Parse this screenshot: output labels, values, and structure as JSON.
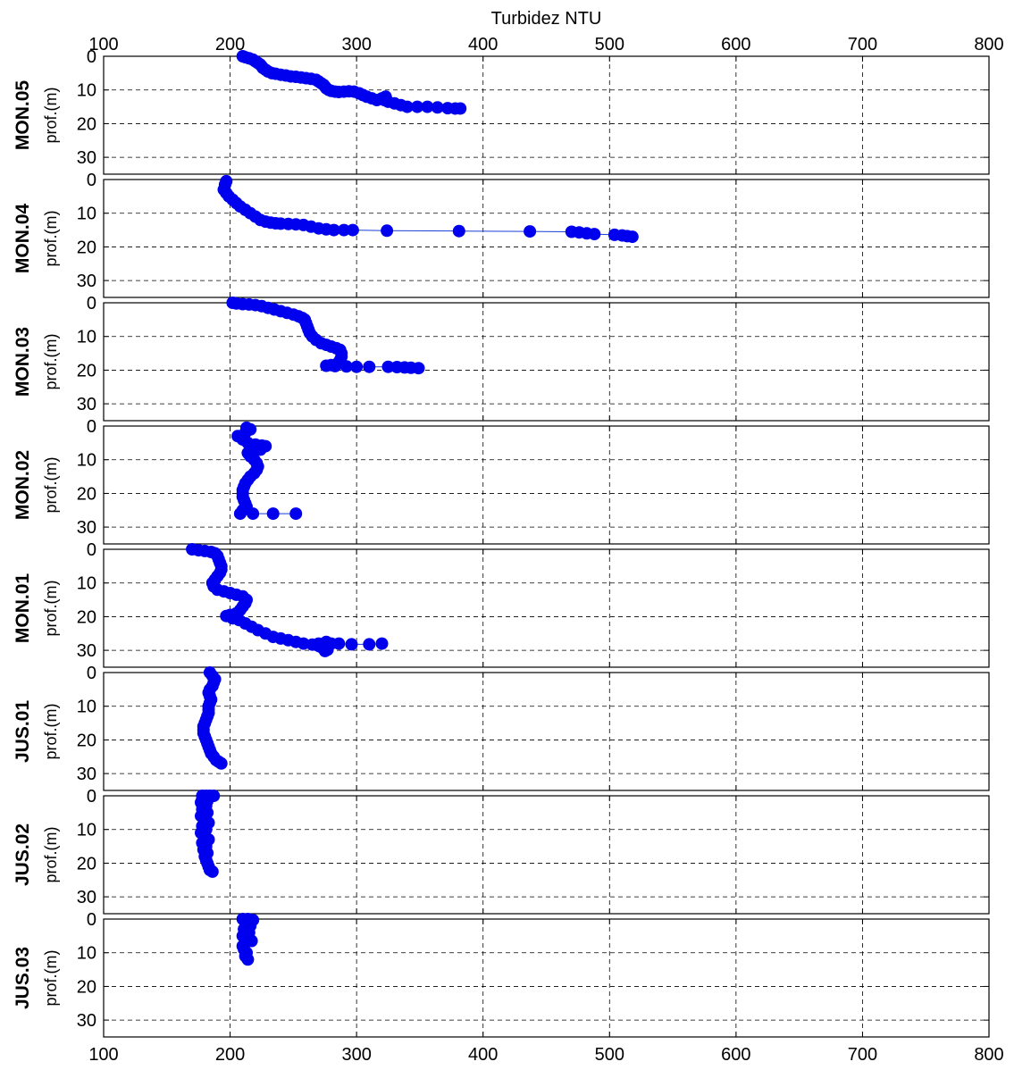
{
  "chart_data": {
    "type": "scatter",
    "xlabel": "Turbidez NTU",
    "xlim": [
      100,
      800
    ],
    "x_ticks": [
      100,
      200,
      300,
      400,
      500,
      600,
      700,
      800
    ],
    "ylim": [
      0,
      35
    ],
    "y_ticks": [
      0,
      10,
      20,
      30
    ],
    "y_inverted": true,
    "ylabel": "prof.(m)",
    "grid": true,
    "marker_color": "#0000ee",
    "line_color": "#1a3fd6",
    "panels": [
      {
        "name": "MON.05",
        "points": [
          [
            210,
            0
          ],
          [
            212,
            0.3
          ],
          [
            215,
            0.6
          ],
          [
            218,
            1
          ],
          [
            220,
            1.5
          ],
          [
            222,
            2
          ],
          [
            224,
            2.5
          ],
          [
            225,
            3
          ],
          [
            226,
            3.5
          ],
          [
            228,
            4
          ],
          [
            230,
            4.5
          ],
          [
            233,
            5
          ],
          [
            236,
            5.2
          ],
          [
            240,
            5.5
          ],
          [
            244,
            5.7
          ],
          [
            248,
            6
          ],
          [
            252,
            6.1
          ],
          [
            256,
            6.3
          ],
          [
            260,
            6.5
          ],
          [
            264,
            6.7
          ],
          [
            268,
            7
          ],
          [
            270,
            7.5
          ],
          [
            272,
            8
          ],
          [
            274,
            8.5
          ],
          [
            275,
            9
          ],
          [
            276,
            9.5
          ],
          [
            278,
            10
          ],
          [
            280,
            10.3
          ],
          [
            283,
            10.5
          ],
          [
            286,
            10.6
          ],
          [
            290,
            10.5
          ],
          [
            294,
            10.4
          ],
          [
            298,
            10.5
          ],
          [
            302,
            11
          ],
          [
            305,
            11.5
          ],
          [
            308,
            12
          ],
          [
            312,
            12.5
          ],
          [
            316,
            13
          ],
          [
            320,
            12.5
          ],
          [
            323,
            12
          ],
          [
            322,
            13
          ],
          [
            325,
            13.5
          ],
          [
            330,
            14
          ],
          [
            335,
            14.5
          ],
          [
            340,
            15
          ],
          [
            348,
            15
          ],
          [
            356,
            15
          ],
          [
            364,
            15.2
          ],
          [
            372,
            15.4
          ],
          [
            378,
            15.5
          ],
          [
            382,
            15.5
          ]
        ]
      },
      {
        "name": "MON.04",
        "points": [
          [
            197,
            0.5
          ],
          [
            196,
            1.5
          ],
          [
            195,
            3
          ],
          [
            197,
            4
          ],
          [
            199,
            5
          ],
          [
            202,
            6
          ],
          [
            205,
            7
          ],
          [
            208,
            8
          ],
          [
            212,
            9
          ],
          [
            216,
            10
          ],
          [
            220,
            11
          ],
          [
            224,
            12
          ],
          [
            228,
            12.5
          ],
          [
            232,
            12.8
          ],
          [
            236,
            13
          ],
          [
            240,
            13.1
          ],
          [
            246,
            13.2
          ],
          [
            252,
            13.3
          ],
          [
            258,
            13.5
          ],
          [
            264,
            14
          ],
          [
            270,
            14.5
          ],
          [
            276,
            14.8
          ],
          [
            282,
            15
          ],
          [
            290,
            15
          ],
          [
            297,
            15
          ],
          [
            324,
            15.2
          ],
          [
            381,
            15.3
          ],
          [
            437,
            15.4
          ],
          [
            470,
            15.5
          ],
          [
            476,
            15.7
          ],
          [
            482,
            16
          ],
          [
            488,
            16.2
          ],
          [
            504,
            16.4
          ],
          [
            510,
            16.6
          ],
          [
            514,
            16.8
          ],
          [
            518,
            17
          ]
        ]
      },
      {
        "name": "MON.03",
        "points": [
          [
            202,
            0
          ],
          [
            205,
            0.2
          ],
          [
            210,
            0.4
          ],
          [
            215,
            0.5
          ],
          [
            220,
            0.7
          ],
          [
            225,
            1
          ],
          [
            230,
            1.5
          ],
          [
            235,
            2
          ],
          [
            240,
            2.5
          ],
          [
            245,
            3
          ],
          [
            250,
            3.5
          ],
          [
            254,
            4
          ],
          [
            257,
            4.5
          ],
          [
            259,
            5
          ],
          [
            260,
            6
          ],
          [
            261,
            7
          ],
          [
            262,
            8
          ],
          [
            263,
            9
          ],
          [
            265,
            10
          ],
          [
            268,
            11
          ],
          [
            272,
            12
          ],
          [
            276,
            12.5
          ],
          [
            280,
            13
          ],
          [
            284,
            13.5
          ],
          [
            287,
            14
          ],
          [
            288,
            15
          ],
          [
            288,
            16
          ],
          [
            287,
            17
          ],
          [
            285,
            18
          ],
          [
            280,
            18.5
          ],
          [
            276,
            18.7
          ],
          [
            283,
            18.8
          ],
          [
            292,
            18.9
          ],
          [
            300,
            19
          ],
          [
            310,
            19
          ],
          [
            325,
            19
          ],
          [
            332,
            19.1
          ],
          [
            338,
            19.2
          ],
          [
            343,
            19.3
          ],
          [
            349,
            19.4
          ]
        ]
      },
      {
        "name": "MON.02",
        "points": [
          [
            213,
            0.5
          ],
          [
            216,
            1
          ],
          [
            212,
            2
          ],
          [
            206,
            3
          ],
          [
            210,
            4
          ],
          [
            214,
            5
          ],
          [
            220,
            5.5
          ],
          [
            225,
            5.8
          ],
          [
            228,
            6
          ],
          [
            224,
            7
          ],
          [
            218,
            7.5
          ],
          [
            214,
            8
          ],
          [
            216,
            9
          ],
          [
            219,
            10
          ],
          [
            221,
            11
          ],
          [
            222,
            12
          ],
          [
            221,
            13
          ],
          [
            219,
            14
          ],
          [
            216,
            15
          ],
          [
            214,
            16
          ],
          [
            212,
            17
          ],
          [
            211,
            18
          ],
          [
            210,
            19
          ],
          [
            210,
            20
          ],
          [
            210,
            21
          ],
          [
            211,
            22
          ],
          [
            212,
            23
          ],
          [
            213,
            24
          ],
          [
            210,
            25
          ],
          [
            208,
            26
          ],
          [
            218,
            26
          ],
          [
            234,
            26
          ],
          [
            252,
            26
          ]
        ]
      },
      {
        "name": "MON.01",
        "points": [
          [
            170,
            0
          ],
          [
            175,
            0.3
          ],
          [
            180,
            0.5
          ],
          [
            185,
            0.8
          ],
          [
            188,
            1.2
          ],
          [
            190,
            2
          ],
          [
            191,
            3
          ],
          [
            192,
            4
          ],
          [
            193,
            5
          ],
          [
            193,
            6
          ],
          [
            192,
            7
          ],
          [
            190,
            8
          ],
          [
            188,
            9
          ],
          [
            186,
            10
          ],
          [
            187,
            11
          ],
          [
            190,
            12
          ],
          [
            195,
            12.5
          ],
          [
            200,
            13
          ],
          [
            205,
            13.5
          ],
          [
            210,
            14
          ],
          [
            213,
            15
          ],
          [
            212,
            16
          ],
          [
            210,
            17
          ],
          [
            208,
            18
          ],
          [
            205,
            19
          ],
          [
            200,
            19.5
          ],
          [
            197,
            19.8
          ],
          [
            202,
            20.5
          ],
          [
            207,
            21
          ],
          [
            212,
            22
          ],
          [
            217,
            23
          ],
          [
            222,
            24
          ],
          [
            228,
            25
          ],
          [
            234,
            26
          ],
          [
            240,
            26.5
          ],
          [
            246,
            27
          ],
          [
            252,
            27.5
          ],
          [
            258,
            28
          ],
          [
            265,
            28.3
          ],
          [
            270,
            28.7
          ],
          [
            274,
            29.2
          ],
          [
            277,
            29.8
          ],
          [
            275,
            30.2
          ],
          [
            272,
            29
          ],
          [
            270,
            28
          ],
          [
            276,
            27.5
          ],
          [
            280,
            28
          ],
          [
            286,
            28
          ],
          [
            296,
            28.2
          ],
          [
            310,
            28.2
          ],
          [
            320,
            28
          ]
        ]
      },
      {
        "name": "JUS.01",
        "points": [
          [
            184,
            0
          ],
          [
            186,
            1
          ],
          [
            188,
            2
          ],
          [
            187,
            3
          ],
          [
            186,
            4
          ],
          [
            184,
            5
          ],
          [
            183,
            6
          ],
          [
            184,
            7
          ],
          [
            185,
            8
          ],
          [
            184,
            9
          ],
          [
            183,
            10
          ],
          [
            183,
            11
          ],
          [
            183,
            12
          ],
          [
            182,
            13
          ],
          [
            181,
            14
          ],
          [
            180,
            15
          ],
          [
            179,
            16
          ],
          [
            179,
            17
          ],
          [
            179,
            18
          ],
          [
            180,
            19
          ],
          [
            181,
            20
          ],
          [
            182,
            21
          ],
          [
            183,
            22
          ],
          [
            184,
            23
          ],
          [
            185,
            24
          ],
          [
            187,
            25
          ],
          [
            189,
            26
          ],
          [
            191,
            26.5
          ],
          [
            193,
            27
          ]
        ]
      },
      {
        "name": "JUS.02",
        "points": [
          [
            178,
            0
          ],
          [
            181,
            0
          ],
          [
            184,
            0
          ],
          [
            187,
            0
          ],
          [
            178,
            1
          ],
          [
            182,
            1.5
          ],
          [
            177,
            2
          ],
          [
            181,
            3
          ],
          [
            178,
            4
          ],
          [
            182,
            5
          ],
          [
            177,
            6
          ],
          [
            180,
            7
          ],
          [
            183,
            8
          ],
          [
            178,
            9
          ],
          [
            181,
            10
          ],
          [
            177,
            11
          ],
          [
            180,
            12
          ],
          [
            183,
            13
          ],
          [
            178,
            14
          ],
          [
            181,
            15
          ],
          [
            179,
            16
          ],
          [
            182,
            17
          ],
          [
            180,
            18
          ],
          [
            181,
            19
          ],
          [
            182,
            20
          ],
          [
            183,
            21
          ],
          [
            184,
            22
          ],
          [
            186,
            22.5
          ]
        ]
      },
      {
        "name": "JUS.03",
        "points": [
          [
            210,
            0
          ],
          [
            214,
            0
          ],
          [
            218,
            0.3
          ],
          [
            212,
            1
          ],
          [
            216,
            2
          ],
          [
            211,
            3
          ],
          [
            215,
            4
          ],
          [
            210,
            5
          ],
          [
            214,
            6
          ],
          [
            217,
            6.5
          ],
          [
            212,
            7
          ],
          [
            210,
            8
          ],
          [
            211,
            9
          ],
          [
            213,
            10
          ],
          [
            212,
            11
          ],
          [
            214,
            12
          ]
        ]
      }
    ]
  }
}
